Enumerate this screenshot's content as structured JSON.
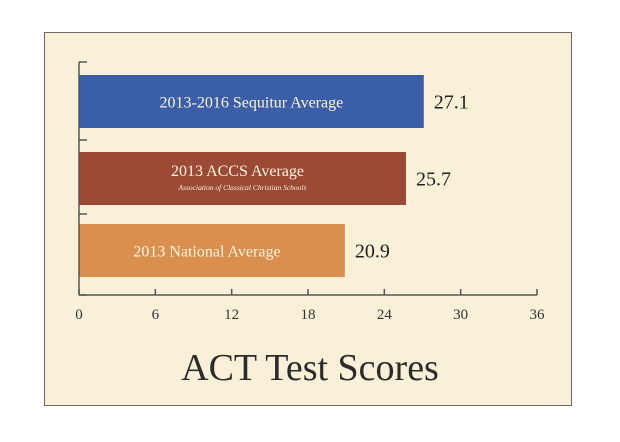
{
  "chart_data": {
    "type": "bar",
    "orientation": "horizontal",
    "title": "ACT Test Scores",
    "categories": [
      {
        "label": "2013-2016 Sequitur Average",
        "sublabel": ""
      },
      {
        "label": "2013 ACCS Average",
        "sublabel": "Association of Classical Christian Schools"
      },
      {
        "label": "2013 National Average",
        "sublabel": ""
      }
    ],
    "values": [
      27.1,
      25.7,
      20.9
    ],
    "value_labels": [
      "27.1",
      "25.7",
      "20.9"
    ],
    "xlim": [
      0,
      36
    ],
    "xticks": [
      "0",
      "6",
      "12",
      "18",
      "24",
      "30",
      "36"
    ],
    "bar_colors": [
      "#3b5fa6",
      "#9a4a35",
      "#d9904f"
    ],
    "background_color": "#f8f1d8",
    "grid": false,
    "legend": "none"
  }
}
